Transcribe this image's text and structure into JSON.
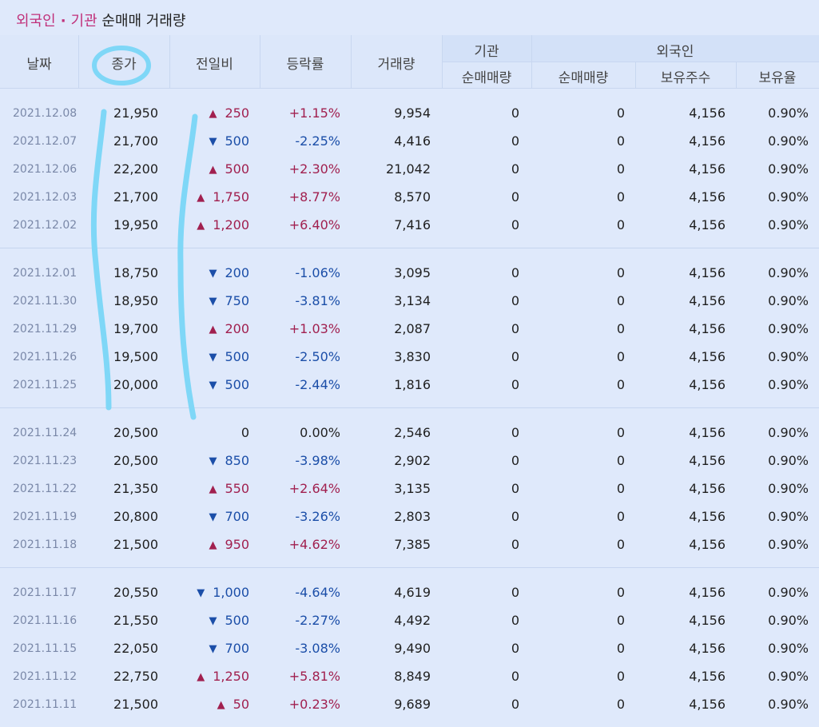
{
  "title": {
    "part1": "외국인",
    "dot": "·",
    "part2": "기관",
    "part3": "순매매 거래량"
  },
  "headers": {
    "date": "날짜",
    "close": "종가",
    "diff": "전일비",
    "rate": "등락률",
    "volume": "거래량",
    "institution_group": "기관",
    "foreign_group": "외국인",
    "inst_net": "순매매량",
    "foreign_net": "순매매량",
    "holdings": "보유주수",
    "hold_rate": "보유율"
  },
  "rows": [
    {
      "date": "2021.12.08",
      "close": "21,950",
      "dir": "up",
      "diff": "250",
      "rate": "+1.15%",
      "volume": "9,954",
      "inst": "0",
      "foreign": "0",
      "hold": "4,156",
      "pct": "0.90%"
    },
    {
      "date": "2021.12.07",
      "close": "21,700",
      "dir": "down",
      "diff": "500",
      "rate": "-2.25%",
      "volume": "4,416",
      "inst": "0",
      "foreign": "0",
      "hold": "4,156",
      "pct": "0.90%"
    },
    {
      "date": "2021.12.06",
      "close": "22,200",
      "dir": "up",
      "diff": "500",
      "rate": "+2.30%",
      "volume": "21,042",
      "inst": "0",
      "foreign": "0",
      "hold": "4,156",
      "pct": "0.90%"
    },
    {
      "date": "2021.12.03",
      "close": "21,700",
      "dir": "up",
      "diff": "1,750",
      "rate": "+8.77%",
      "volume": "8,570",
      "inst": "0",
      "foreign": "0",
      "hold": "4,156",
      "pct": "0.90%"
    },
    {
      "date": "2021.12.02",
      "close": "19,950",
      "dir": "up",
      "diff": "1,200",
      "rate": "+6.40%",
      "volume": "7,416",
      "inst": "0",
      "foreign": "0",
      "hold": "4,156",
      "pct": "0.90%"
    },
    {
      "date": "2021.12.01",
      "close": "18,750",
      "dir": "down",
      "diff": "200",
      "rate": "-1.06%",
      "volume": "3,095",
      "inst": "0",
      "foreign": "0",
      "hold": "4,156",
      "pct": "0.90%"
    },
    {
      "date": "2021.11.30",
      "close": "18,950",
      "dir": "down",
      "diff": "750",
      "rate": "-3.81%",
      "volume": "3,134",
      "inst": "0",
      "foreign": "0",
      "hold": "4,156",
      "pct": "0.90%"
    },
    {
      "date": "2021.11.29",
      "close": "19,700",
      "dir": "up",
      "diff": "200",
      "rate": "+1.03%",
      "volume": "2,087",
      "inst": "0",
      "foreign": "0",
      "hold": "4,156",
      "pct": "0.90%"
    },
    {
      "date": "2021.11.26",
      "close": "19,500",
      "dir": "down",
      "diff": "500",
      "rate": "-2.50%",
      "volume": "3,830",
      "inst": "0",
      "foreign": "0",
      "hold": "4,156",
      "pct": "0.90%"
    },
    {
      "date": "2021.11.25",
      "close": "20,000",
      "dir": "down",
      "diff": "500",
      "rate": "-2.44%",
      "volume": "1,816",
      "inst": "0",
      "foreign": "0",
      "hold": "4,156",
      "pct": "0.90%"
    },
    {
      "date": "2021.11.24",
      "close": "20,500",
      "dir": "none",
      "diff": "0",
      "rate": "0.00%",
      "volume": "2,546",
      "inst": "0",
      "foreign": "0",
      "hold": "4,156",
      "pct": "0.90%"
    },
    {
      "date": "2021.11.23",
      "close": "20,500",
      "dir": "down",
      "diff": "850",
      "rate": "-3.98%",
      "volume": "2,902",
      "inst": "0",
      "foreign": "0",
      "hold": "4,156",
      "pct": "0.90%"
    },
    {
      "date": "2021.11.22",
      "close": "21,350",
      "dir": "up",
      "diff": "550",
      "rate": "+2.64%",
      "volume": "3,135",
      "inst": "0",
      "foreign": "0",
      "hold": "4,156",
      "pct": "0.90%"
    },
    {
      "date": "2021.11.19",
      "close": "20,800",
      "dir": "down",
      "diff": "700",
      "rate": "-3.26%",
      "volume": "2,803",
      "inst": "0",
      "foreign": "0",
      "hold": "4,156",
      "pct": "0.90%"
    },
    {
      "date": "2021.11.18",
      "close": "21,500",
      "dir": "up",
      "diff": "950",
      "rate": "+4.62%",
      "volume": "7,385",
      "inst": "0",
      "foreign": "0",
      "hold": "4,156",
      "pct": "0.90%"
    },
    {
      "date": "2021.11.17",
      "close": "20,550",
      "dir": "down",
      "diff": "1,000",
      "rate": "-4.64%",
      "volume": "4,619",
      "inst": "0",
      "foreign": "0",
      "hold": "4,156",
      "pct": "0.90%"
    },
    {
      "date": "2021.11.16",
      "close": "21,550",
      "dir": "down",
      "diff": "500",
      "rate": "-2.27%",
      "volume": "4,492",
      "inst": "0",
      "foreign": "0",
      "hold": "4,156",
      "pct": "0.90%"
    },
    {
      "date": "2021.11.15",
      "close": "22,050",
      "dir": "down",
      "diff": "700",
      "rate": "-3.08%",
      "volume": "9,490",
      "inst": "0",
      "foreign": "0",
      "hold": "4,156",
      "pct": "0.90%"
    },
    {
      "date": "2021.11.12",
      "close": "22,750",
      "dir": "up",
      "diff": "1,250",
      "rate": "+5.81%",
      "volume": "8,849",
      "inst": "0",
      "foreign": "0",
      "hold": "4,156",
      "pct": "0.90%"
    },
    {
      "date": "2021.11.11",
      "close": "21,500",
      "dir": "up",
      "diff": "50",
      "rate": "+0.23%",
      "volume": "9,689",
      "inst": "0",
      "foreign": "0",
      "hold": "4,156",
      "pct": "0.90%"
    }
  ],
  "colors": {
    "up": "#a1204f",
    "down": "#1b4ea8",
    "annotation": "#7fd7f7",
    "background": "#dfe9fb"
  },
  "icons": {
    "up": "up-triangle-icon",
    "down": "down-triangle-icon"
  }
}
